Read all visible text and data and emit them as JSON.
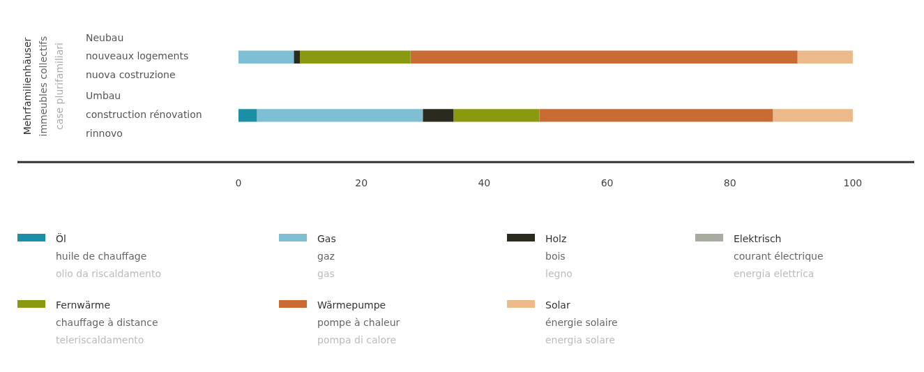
{
  "chart_data": {
    "type": "bar",
    "orientation": "horizontal",
    "stacked": true,
    "ylabel": "Mehrfamilienhäuser\nimmeubles collectifs\ncase plurifamiliari",
    "categories": [
      "Neubau\nnouveaux logements\nnuova costruzione",
      "Umbau\nconstruction rénovation\nrinnovo"
    ],
    "series": [
      {
        "name": "Öl\nhuile de chauffage\nolio da riscaldamento",
        "color": "#1a8fa5",
        "values": [
          0,
          3
        ]
      },
      {
        "name": "Gas\ngaz\ngas",
        "color": "#7fbfd4",
        "values": [
          9,
          27
        ]
      },
      {
        "name": "Holz\nbois\nlegno",
        "color": "#2a2a1e",
        "values": [
          1,
          5
        ]
      },
      {
        "name": "Elektrisch\ncourant électrique\nenergia elettrica",
        "color": "#a8aba0",
        "values": [
          0,
          0
        ]
      },
      {
        "name": "Fernwärme\nchauffage à distance\nteleriscaldamento",
        "color": "#8a9a10",
        "values": [
          18,
          14
        ]
      },
      {
        "name": "Wärmepumpe\npompe à chaleur\npompa di calore",
        "color": "#c96c34",
        "values": [
          63,
          38
        ]
      },
      {
        "name": "Solar\nénergie solaire\nenergia solare",
        "color": "#ebb98a",
        "values": [
          9,
          13
        ]
      }
    ],
    "xlim": [
      0,
      110
    ],
    "xticks": [
      0,
      20,
      40,
      60,
      80,
      100
    ],
    "grid": false,
    "legend": "bottom"
  }
}
